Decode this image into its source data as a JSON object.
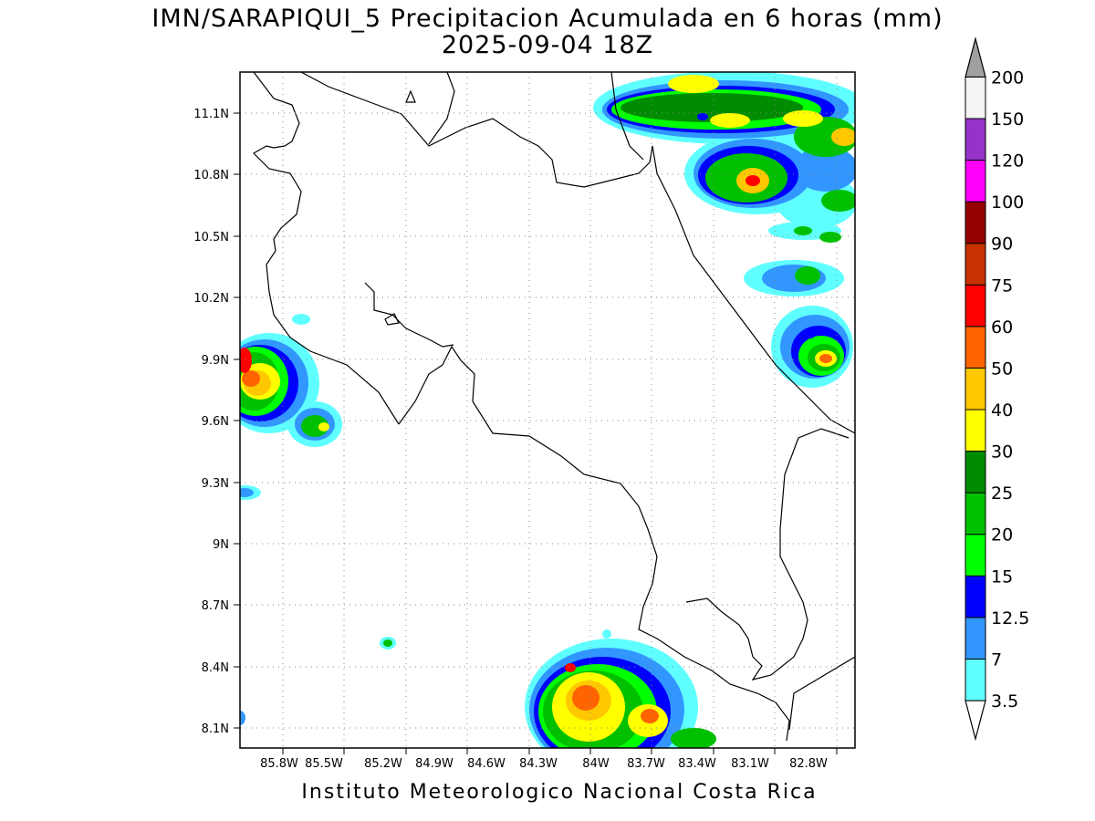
{
  "title": {
    "line1": "IMN/SARAPIQUI_5 Precipitacion Acumulada en 6 horas (mm)",
    "line2": "2025-09-04 18Z"
  },
  "footer": "Instituto Meteorologico Nacional Costa Rica",
  "map": {
    "lat_labels": [
      "11.1N",
      "10.8N",
      "10.5N",
      "10.2N",
      "9.9N",
      "9.6N",
      "9.3N",
      "9N",
      "8.7N",
      "8.4N",
      "8.1N"
    ],
    "lon_labels": [
      "85.8W",
      "85.5W",
      "85.2W",
      "84.9W",
      "84.6W",
      "84.3W",
      "84W",
      "83.7W",
      "83.4W",
      "83.1W",
      "82.8W"
    ],
    "gridlines": true
  },
  "colorbar": {
    "levels": [
      "3.5",
      "7",
      "12.5",
      "15",
      "20",
      "25",
      "30",
      "40",
      "50",
      "60",
      "75",
      "90",
      "100",
      "120",
      "150",
      "200"
    ],
    "colors": [
      "#60ffff",
      "#3296ff",
      "#0000ff",
      "#00ff00",
      "#00c000",
      "#008c00",
      "#ffff00",
      "#ffc800",
      "#ff6400",
      "#ff0000",
      "#c83200",
      "#960000",
      "#ff00ff",
      "#9632c8",
      "#f5f5f5",
      "#a0a0a0"
    ]
  }
}
